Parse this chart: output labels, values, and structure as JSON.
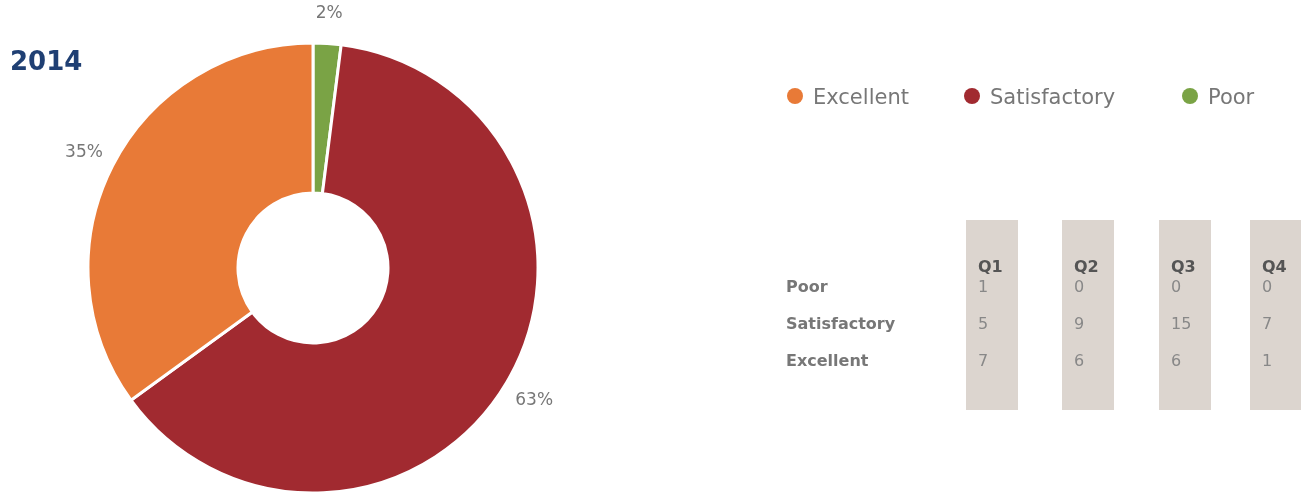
{
  "chart_data": [
    {
      "type": "donut",
      "title": "2014",
      "categories": [
        "Excellent",
        "Satisfactory",
        "Poor"
      ],
      "values": [
        35,
        63,
        2
      ],
      "colors": [
        "#e87a37",
        "#a12a30",
        "#7aa345"
      ],
      "value_labels": [
        "35%",
        "63%",
        "2%"
      ],
      "legend": "top right"
    },
    {
      "type": "heatmap",
      "categories": [
        "Q1",
        "Q2",
        "Q3",
        "Q4"
      ],
      "y_categories": [
        "Poor",
        "Satisfactory",
        "Excellent"
      ],
      "cells": [
        [
          1,
          0,
          0,
          0
        ],
        [
          5,
          9,
          15,
          7
        ],
        [
          7,
          6,
          6,
          1
        ]
      ],
      "data_labels": true
    }
  ]
}
